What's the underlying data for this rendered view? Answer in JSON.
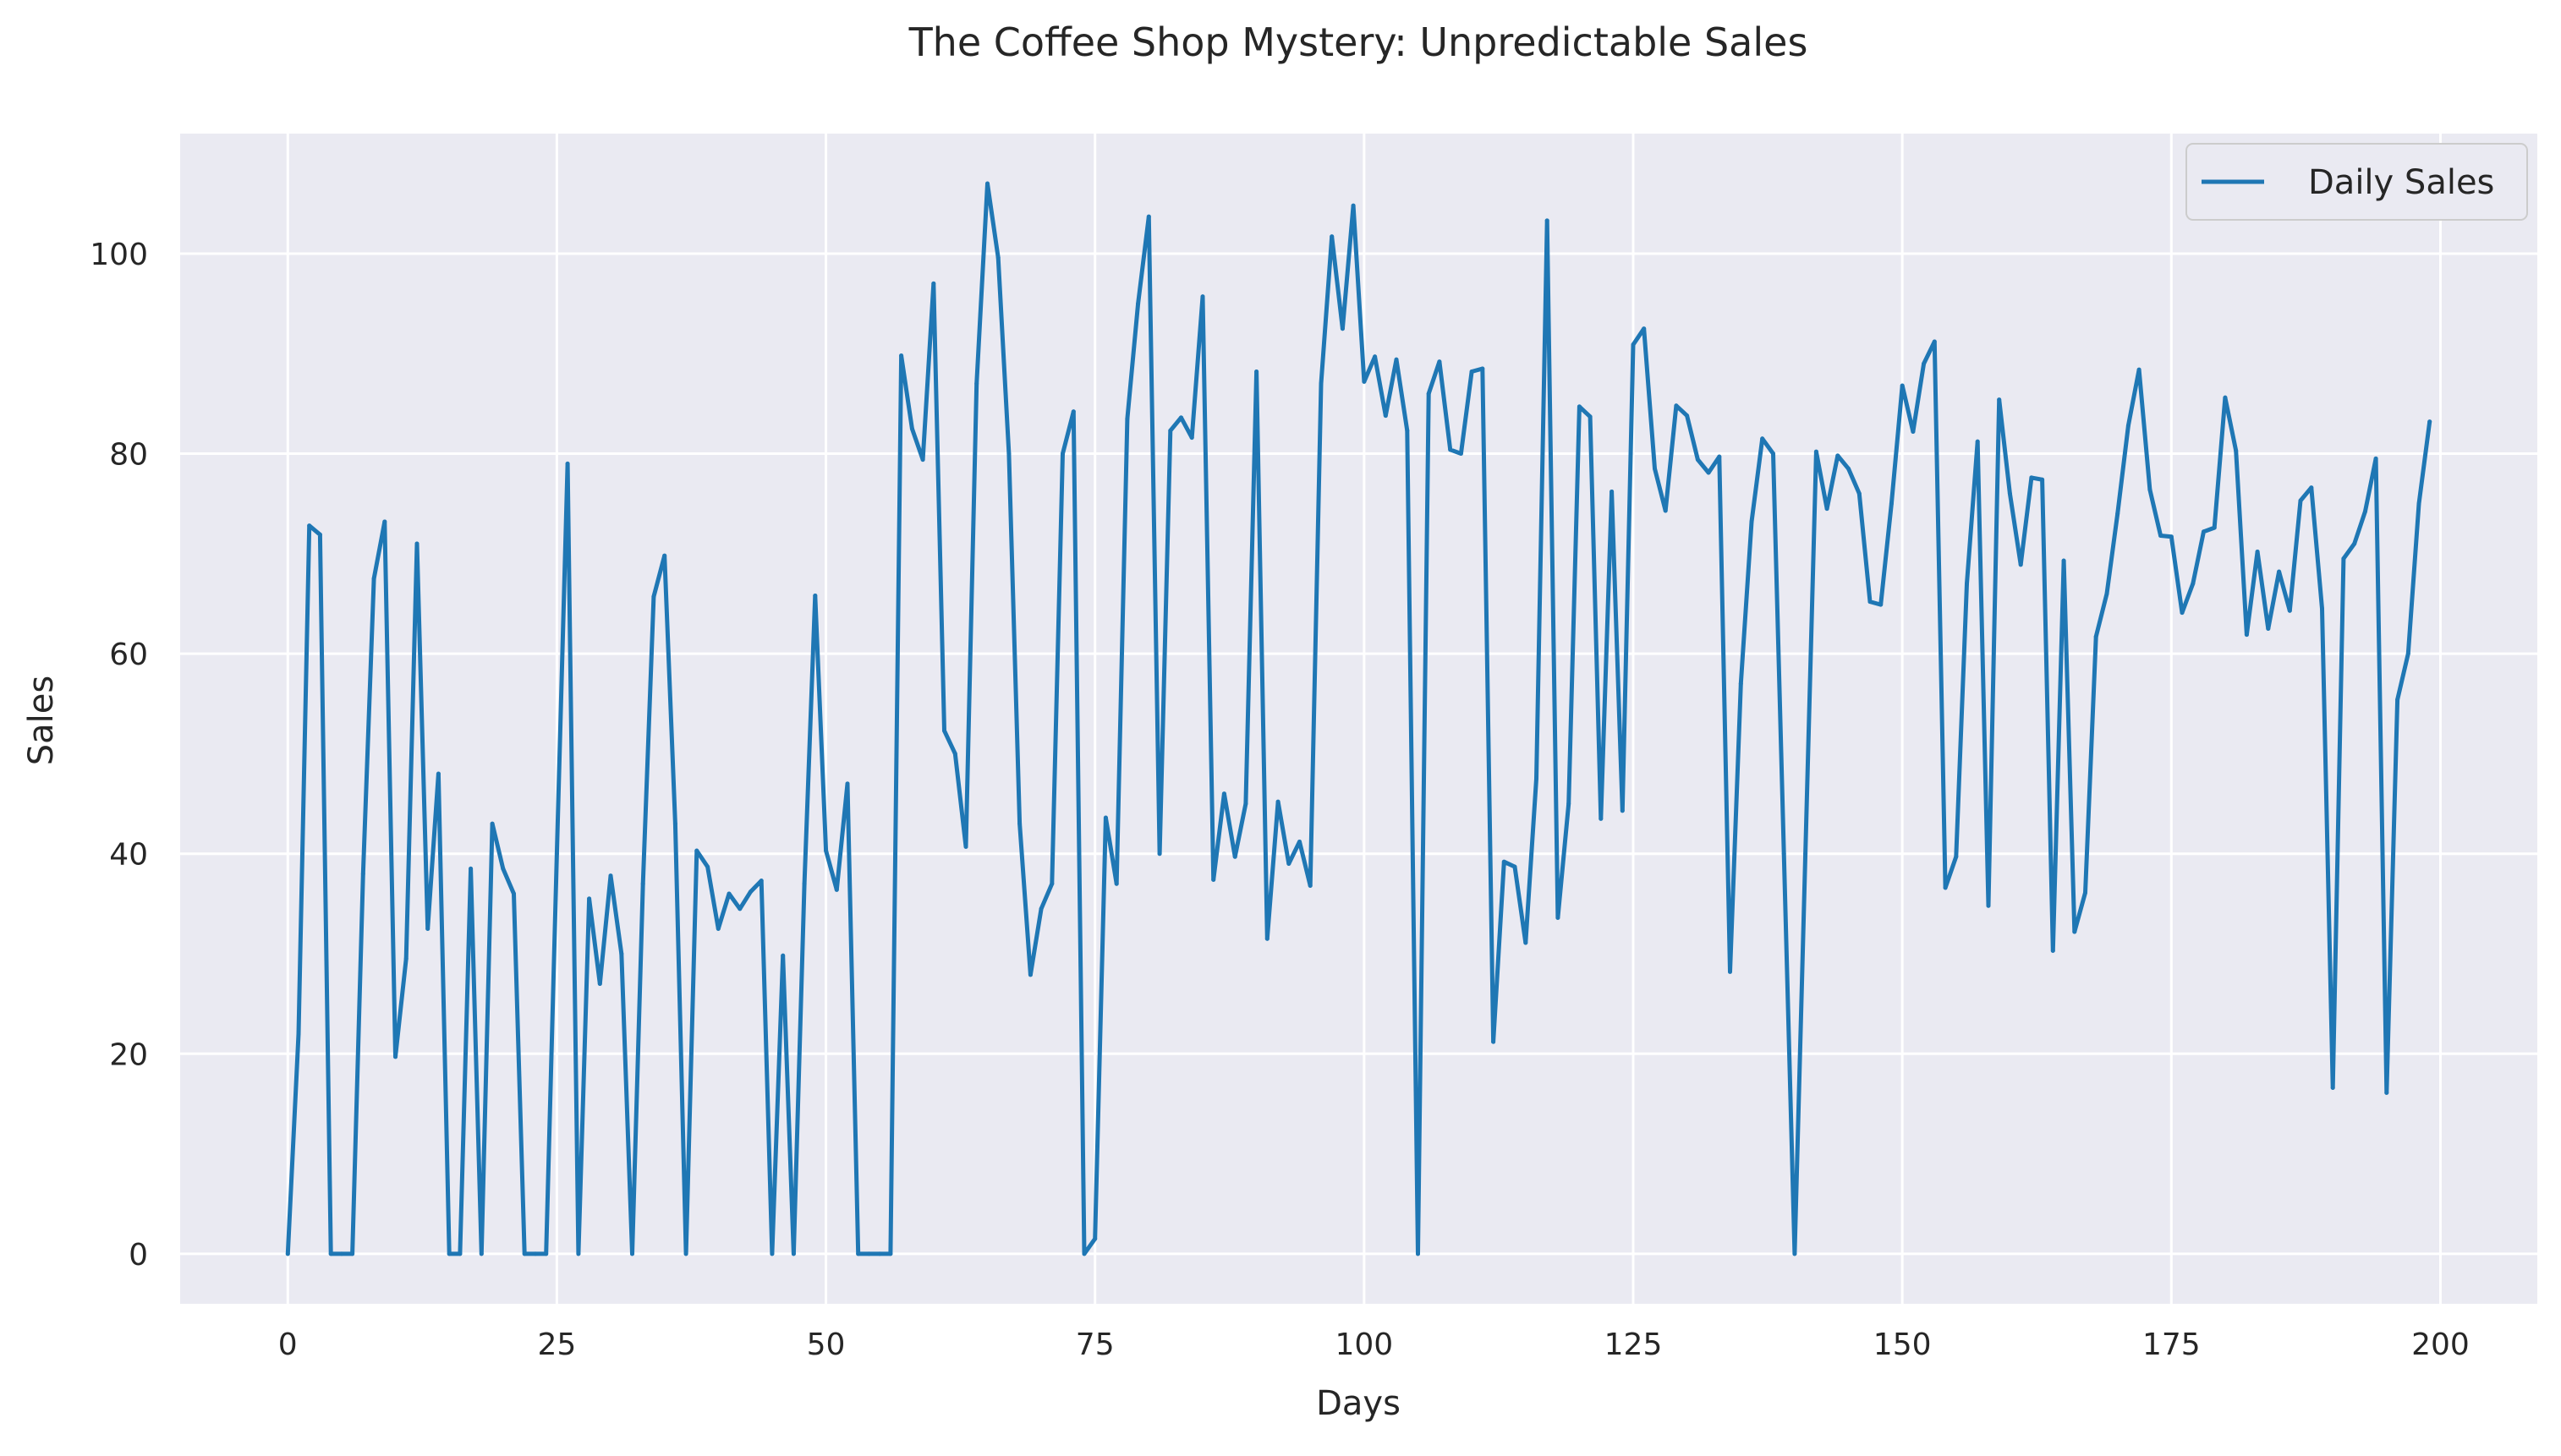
{
  "chart_data": {
    "type": "line",
    "title": "The Coffee Shop Mystery: Unpredictable Sales",
    "xlabel": "Days",
    "ylabel": "Sales",
    "xlim": [
      -10,
      209
    ],
    "ylim": [
      -5,
      112
    ],
    "xticks": [
      0,
      25,
      50,
      75,
      100,
      125,
      150,
      175,
      200
    ],
    "yticks": [
      0,
      20,
      40,
      60,
      80,
      100
    ],
    "grid": true,
    "legend_position": "top-right",
    "colors": {
      "line": "#1f77b4",
      "plot_bg": "#eaeaf2",
      "grid": "#ffffff"
    },
    "series": [
      {
        "name": "Daily Sales",
        "x_start": 0,
        "x_step": 1,
        "values": [
          0,
          22,
          72.8,
          71.9,
          0,
          0,
          0,
          38,
          67.5,
          73.2,
          19.7,
          29.5,
          71,
          32.5,
          48,
          0,
          0,
          38.5,
          0,
          43,
          38.5,
          36,
          0,
          0,
          0,
          40,
          79,
          0,
          35.5,
          27,
          37.8,
          30,
          0,
          37,
          65.7,
          69.8,
          43,
          0,
          40.3,
          38.7,
          32.5,
          36,
          34.5,
          36.2,
          37.3,
          0,
          29.8,
          0,
          37,
          65.8,
          40.3,
          36.4,
          47,
          0,
          0,
          0,
          0,
          89.8,
          82.5,
          79.4,
          97,
          52.3,
          50,
          40.7,
          87,
          107,
          99.6,
          80,
          43,
          27.9,
          34.5,
          37,
          80,
          84.2,
          0,
          1.5,
          43.6,
          37,
          83.5,
          95,
          103.7,
          40,
          82.3,
          83.6,
          81.6,
          95.7,
          37.4,
          46,
          39.7,
          45,
          88.2,
          31.5,
          45.2,
          39,
          41.2,
          36.8,
          87,
          101.7,
          92.5,
          104.8,
          87.2,
          89.7,
          83.8,
          89.4,
          82.3,
          0,
          86,
          89.2,
          80.4,
          80,
          88.2,
          88.5,
          21.2,
          39.2,
          38.7,
          31.1,
          47.5,
          103.3,
          33.6,
          45,
          84.7,
          83.7,
          43.5,
          76.2,
          44.3,
          90.9,
          92.5,
          78.5,
          74.3,
          84.8,
          83.8,
          79.4,
          78.1,
          79.7,
          28.2,
          57,
          73.2,
          81.5,
          80,
          40,
          0,
          40,
          80.2,
          74.5,
          79.8,
          78.5,
          76,
          65.2,
          64.9,
          75,
          86.8,
          82.2,
          89,
          91.2,
          36.6,
          39.7,
          67,
          81.2,
          34.8,
          85.4,
          76,
          68.9,
          77.6,
          77.4,
          30.3,
          69.3,
          32.2,
          36.1,
          61.7,
          66,
          74,
          82.8,
          88.4,
          76.4,
          71.8,
          71.7,
          64.1,
          67,
          72.2,
          72.6,
          85.6,
          80.3,
          61.9,
          70.2,
          62.5,
          68.2,
          64.3,
          75.3,
          76.6,
          64.5,
          16.6,
          69.5,
          71,
          74.2,
          79.5,
          16.1,
          55.4,
          60,
          75,
          83.2
        ]
      }
    ]
  }
}
